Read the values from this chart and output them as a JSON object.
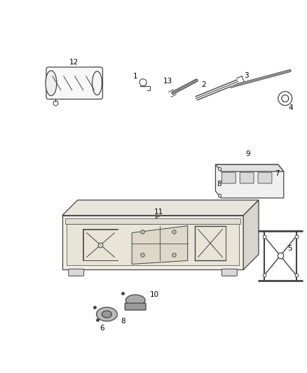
{
  "background_color": "#ffffff",
  "line_color": "#444444",
  "figsize": [
    4.38,
    5.33
  ],
  "dpi": 100
}
